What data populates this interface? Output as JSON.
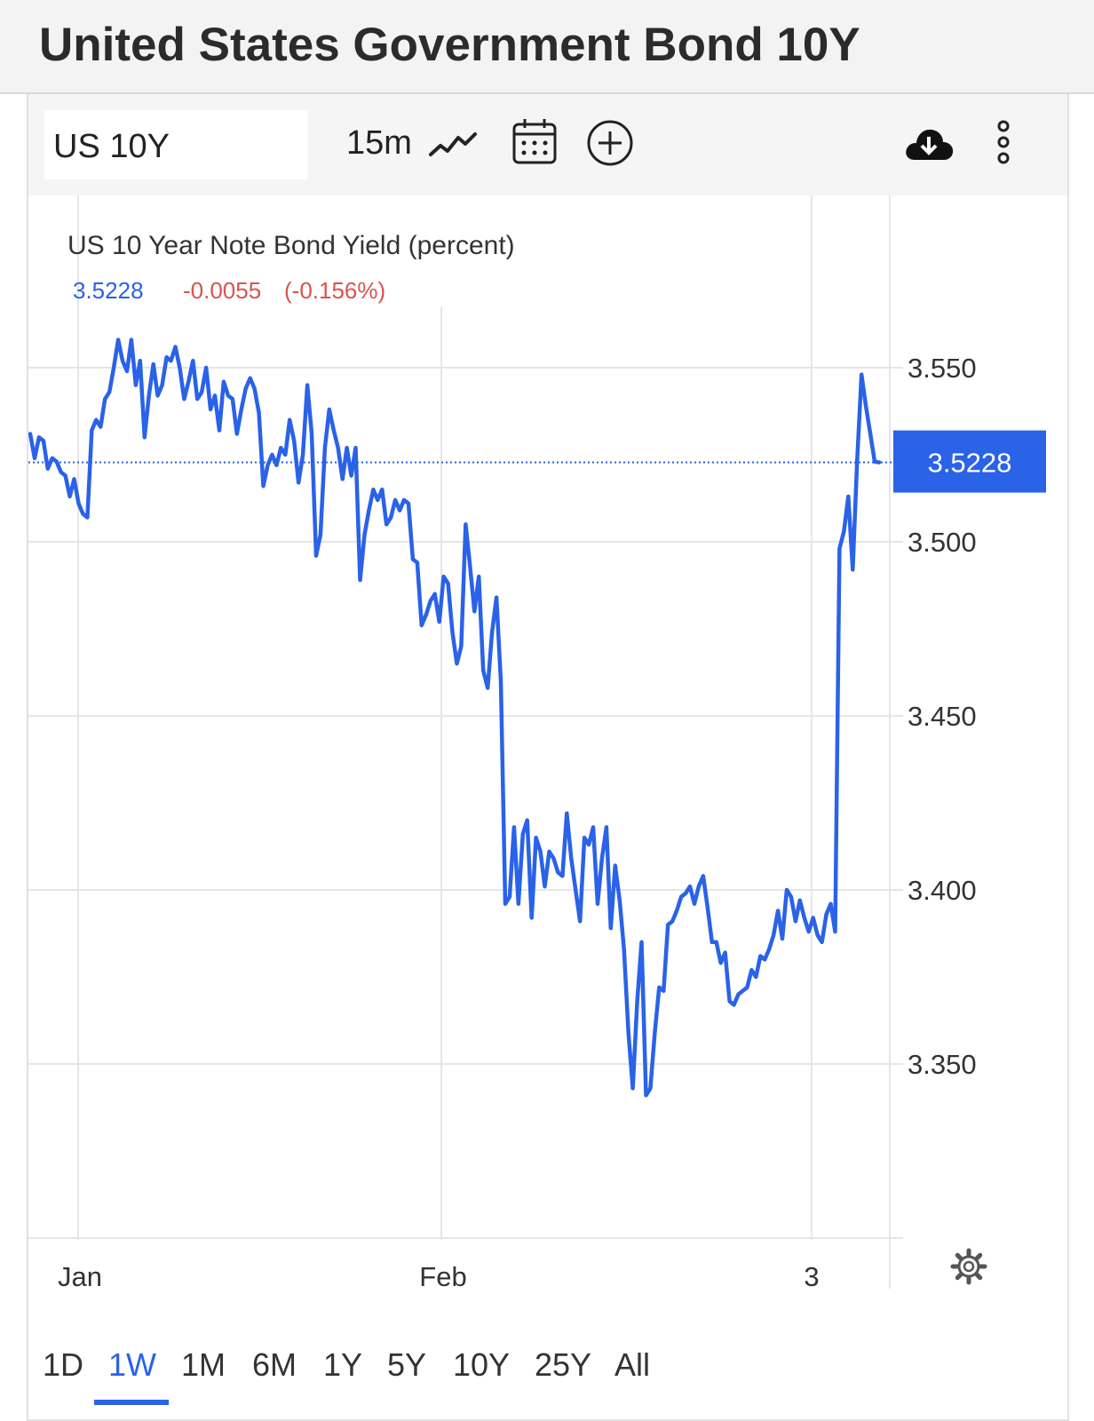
{
  "page": {
    "title": "United States Government Bond 10Y"
  },
  "toolbar": {
    "symbol": "US 10Y",
    "interval": "15m",
    "icons": [
      "line-chart-icon",
      "calendar-icon",
      "add-compare-icon",
      "download-cloud-icon",
      "more-menu-icon"
    ]
  },
  "chart_data": {
    "type": "line",
    "title": "US 10 Year Note Bond Yield (percent)",
    "quote": {
      "last": "3.5228",
      "change": "-0.0055",
      "change_pct": "(-0.156%)"
    },
    "last_value": 3.5228,
    "last_label": "3.5228",
    "x_labels": [
      "Jan",
      "Feb",
      "3"
    ],
    "y_ticks": [
      "3.350",
      "3.400",
      "3.450",
      "3.500",
      "3.550"
    ],
    "y_tick_values": [
      3.35,
      3.4,
      3.45,
      3.5,
      3.55
    ],
    "ylim": [
      3.295,
      3.6
    ],
    "grid": true,
    "colors": {
      "line": "#2a62e8",
      "up": "#2a62e8",
      "down": "#d9534f",
      "grid": "#e6e6e6"
    },
    "series": [
      {
        "values": [
          3.531,
          3.524,
          3.53,
          3.529,
          3.521,
          3.524,
          3.523,
          3.52,
          3.519,
          3.513,
          3.518,
          3.511,
          3.508,
          3.507,
          3.532,
          3.535,
          3.533,
          3.541,
          3.543,
          3.55,
          3.558,
          3.552,
          3.549,
          3.558,
          3.545,
          3.552,
          3.53,
          3.542,
          3.551,
          3.542,
          3.545,
          3.553,
          3.552,
          3.556,
          3.55,
          3.541,
          3.546,
          3.552,
          3.541,
          3.543,
          3.55,
          3.538,
          3.542,
          3.532,
          3.546,
          3.542,
          3.541,
          3.531,
          3.538,
          3.544,
          3.547,
          3.544,
          3.537,
          3.516,
          3.522,
          3.525,
          3.522,
          3.527,
          3.525,
          3.535,
          3.529,
          3.517,
          3.525,
          3.545,
          3.531,
          3.496,
          3.502,
          3.527,
          3.538,
          3.532,
          3.527,
          3.518,
          3.527,
          3.519,
          3.527,
          3.489,
          3.502,
          3.509,
          3.515,
          3.512,
          3.515,
          3.505,
          3.507,
          3.512,
          3.509,
          3.512,
          3.511,
          3.495,
          3.494,
          3.476,
          3.479,
          3.483,
          3.485,
          3.477,
          3.49,
          3.488,
          3.474,
          3.465,
          3.47,
          3.505,
          3.493,
          3.48,
          3.49,
          3.463,
          3.458,
          3.474,
          3.484,
          3.46,
          3.396,
          3.398,
          3.418,
          3.396,
          3.416,
          3.42,
          3.392,
          3.415,
          3.411,
          3.401,
          3.411,
          3.409,
          3.405,
          3.404,
          3.422,
          3.409,
          3.4,
          3.391,
          3.415,
          3.413,
          3.418,
          3.396,
          3.409,
          3.418,
          3.389,
          3.407,
          3.397,
          3.383,
          3.359,
          3.343,
          3.368,
          3.385,
          3.341,
          3.343,
          3.359,
          3.372,
          3.371,
          3.39,
          3.391,
          3.394,
          3.398,
          3.399,
          3.401,
          3.396,
          3.401,
          3.404,
          3.395,
          3.385,
          3.385,
          3.379,
          3.382,
          3.368,
          3.367,
          3.37,
          3.371,
          3.372,
          3.377,
          3.375,
          3.381,
          3.38,
          3.383,
          3.387,
          3.394,
          3.386,
          3.4,
          3.398,
          3.391,
          3.397,
          3.392,
          3.388,
          3.392,
          3.387,
          3.385,
          3.393,
          3.396,
          3.388,
          3.498,
          3.503,
          3.513,
          3.492,
          3.523,
          3.548,
          3.539,
          3.531,
          3.523,
          3.5228
        ]
      }
    ],
    "range_buttons": [
      "1D",
      "1W",
      "1M",
      "6M",
      "1Y",
      "5Y",
      "10Y",
      "25Y",
      "All"
    ],
    "active_range": "1W"
  }
}
